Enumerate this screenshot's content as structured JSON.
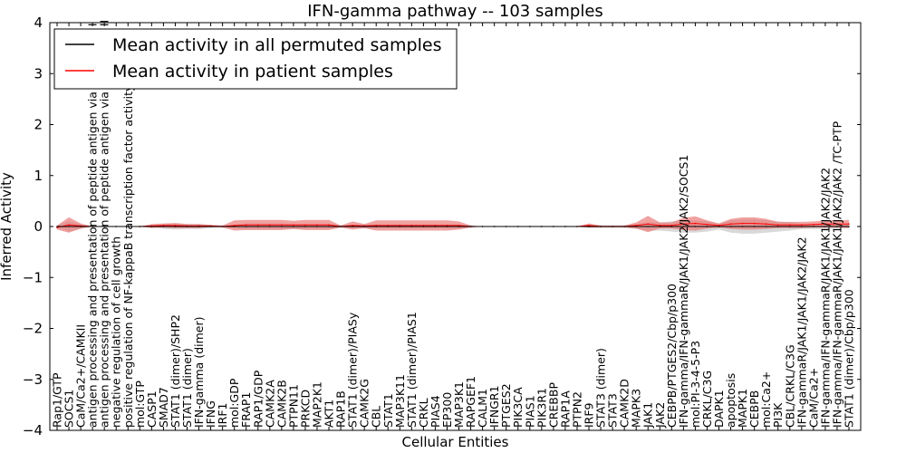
{
  "chart_data": {
    "type": "line",
    "title": "IFN-gamma pathway -- 103 samples",
    "xlabel": "Cellular Entities",
    "ylabel": "Inferred Activity",
    "ylim": [
      -4,
      4
    ],
    "yticks": [
      -4,
      -3,
      -2,
      -1,
      0,
      1,
      2,
      3,
      4
    ],
    "ytick_labels": [
      "−4",
      "−3",
      "−2",
      "−1",
      "0",
      "1",
      "2",
      "3",
      "4"
    ],
    "legend_position": "top-left",
    "categories": [
      "Rap1/GTP",
      "SOCS1",
      "CaM/Ca2+/CAMKII",
      "antigen processing and presentation of peptide antigen via MHC class I",
      "antigen processing and presentation of peptide antigen via MHC class II",
      "negative regulation of cell growth",
      "positive regulation of NF-kappaB transcription factor activity",
      "mol:GTP",
      "CASP1",
      "SMAD7",
      "STAT1 (dimer)/SHP2",
      "STAT1 (dimer)",
      "IFN-gamma (dimer)",
      "IFNG",
      "IRF1",
      "mol:GDP",
      "FRAP1",
      "RAP1/GDP",
      "CAMK2A",
      "CAMK2B",
      "PTPN11",
      "PRKCD",
      "MAP2K1",
      "AKT1",
      "RAP1B",
      "STAT1 (dimer)/PIASy",
      "CAMK2G",
      "CBL",
      "STAT1",
      "MAP3K11",
      "STAT1 (dimer)/PIAS1",
      "CRKL",
      "PIAS4",
      "EP300",
      "MAP3K1",
      "RAPGEF1",
      "CALM1",
      "IFNGR1",
      "PTGES2",
      "PIK3CA",
      "PIAS1",
      "PIK3R1",
      "CREBBP",
      "RAP1A",
      "PTPN2",
      "IRF9",
      "STAT3 (dimer)",
      "STAT3",
      "CAMK2D",
      "MAPK3",
      "JAK1",
      "JAK2",
      "CEBPB/PTGES2/Cbp/p300",
      "IFN-gamma/IFN-gammaR/JAK1/JAK2/JAK2/SOCS1",
      "mol:PI-3-4-5-P3",
      "CRKL/C3G",
      "DAPK1",
      "apoptosis",
      "MAPK1",
      "CEBPB",
      "mol:Ca2+",
      "PI3K",
      "CBL/CRKL/C3G",
      "IFN-gammaR/JAK1/JAK1/JAK2/JAK2",
      "CaM/Ca2+",
      "IFN-gamma/IFN-gammaR/JAK1/JAK1/JAK2/JAK2",
      "IFN-gamma/IFN-gammaR/JAK1/JAK1/JAK2/JAK2  /TC-PTP",
      "STAT1 (dimer)/Cbp/p300"
    ],
    "series": [
      {
        "name": "Mean activity in all permuted samples",
        "color": "#000000",
        "values": [
          0,
          0,
          0,
          0,
          0,
          0,
          0,
          0,
          0,
          0,
          0,
          0,
          0,
          0,
          0,
          0,
          0,
          0,
          0,
          0,
          0,
          0,
          0,
          0,
          0,
          0,
          0,
          0,
          0,
          0,
          0,
          0,
          0,
          0,
          0,
          0,
          0,
          0,
          0,
          0,
          0,
          0,
          0,
          0,
          0,
          0,
          0,
          0,
          0,
          0,
          0,
          0,
          0,
          0,
          0,
          0,
          0,
          0,
          0,
          0,
          0,
          0,
          0,
          0,
          0,
          0,
          0,
          0
        ],
        "band": [
          0.02,
          0.1,
          0.05,
          0,
          0,
          0,
          0,
          0,
          0,
          0.05,
          0.06,
          0.05,
          0.05,
          0.03,
          0.01,
          0.03,
          0.06,
          0.06,
          0.06,
          0.06,
          0.05,
          0.05,
          0.05,
          0.05,
          0.02,
          0.03,
          0.04,
          0.04,
          0.04,
          0.04,
          0.04,
          0.04,
          0.04,
          0.04,
          0.04,
          0.02,
          0,
          0,
          0,
          0,
          0,
          0,
          0,
          0,
          0,
          0.03,
          0.02,
          0.02,
          0.02,
          0.05,
          0.08,
          0.08,
          0.1,
          0.12,
          0.12,
          0.1,
          0.06,
          0.12,
          0.14,
          0.14,
          0.12,
          0.1,
          0.08,
          0.05,
          0.05,
          0.05,
          0.04,
          0.03
        ]
      },
      {
        "name": "Mean activity in patient samples",
        "color": "#ff0000",
        "band_color": "#e8706f",
        "values": [
          -0.02,
          0.03,
          0.01,
          0,
          0,
          0,
          0,
          0,
          0.01,
          0.02,
          0.02,
          0.01,
          0.01,
          0.01,
          0,
          0.02,
          0.03,
          0.03,
          0.03,
          0.03,
          0.03,
          0.03,
          0.03,
          0.03,
          0,
          0.02,
          0.01,
          0.02,
          0.02,
          0.02,
          0.02,
          0.02,
          0.02,
          0.02,
          0.02,
          0,
          0,
          0,
          0,
          0,
          0,
          0,
          0,
          0,
          0,
          0.02,
          0,
          0,
          0,
          0.02,
          0.05,
          0.02,
          0.02,
          0.05,
          0.06,
          0.04,
          0.02,
          0.05,
          0.06,
          0.06,
          0.05,
          0.03,
          0.03,
          0.03,
          0.04,
          0.05,
          0.05,
          0.05
        ],
        "band": [
          0.04,
          0.15,
          0.05,
          0,
          0,
          0,
          0,
          0,
          0.04,
          0.04,
          0.05,
          0.04,
          0.04,
          0.02,
          0.02,
          0.1,
          0.1,
          0.1,
          0.1,
          0.1,
          0.08,
          0.1,
          0.1,
          0.1,
          0.02,
          0.08,
          0.04,
          0.1,
          0.1,
          0.1,
          0.1,
          0.1,
          0.1,
          0.1,
          0.08,
          0.02,
          0,
          0,
          0,
          0,
          0,
          0,
          0,
          0,
          0,
          0.04,
          0.02,
          0.02,
          0.02,
          0.06,
          0.16,
          0.06,
          0.06,
          0.12,
          0.14,
          0.08,
          0.04,
          0.1,
          0.12,
          0.12,
          0.1,
          0.06,
          0.06,
          0.06,
          0.06,
          0.07,
          0.07,
          0.08
        ]
      }
    ]
  }
}
